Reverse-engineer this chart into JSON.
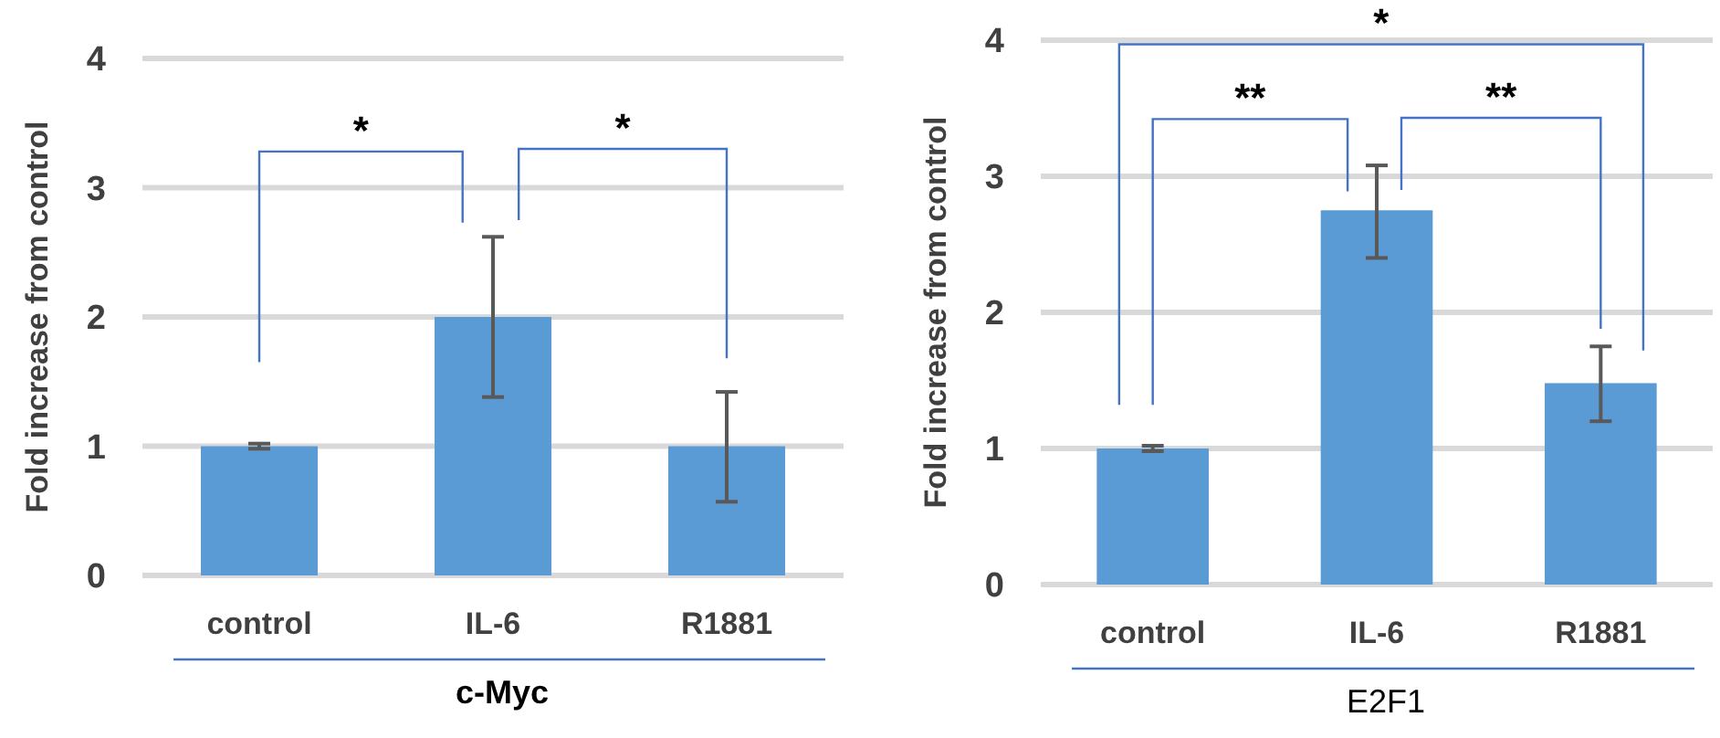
{
  "chart_data": [
    {
      "type": "bar",
      "xlabel": "c-Myc",
      "ylabel": "Fold increase from control",
      "categories": [
        "control",
        "IL-6",
        "R1881"
      ],
      "values": [
        1,
        2,
        1
      ],
      "errors": [
        0.02,
        [
          1.38,
          2.62
        ],
        [
          0.57,
          1.42
        ]
      ],
      "color": "#5b9bd5",
      "ylim": [
        0,
        4
      ],
      "yticks": [
        0,
        1,
        2,
        3,
        4
      ],
      "grid": "y",
      "annotations": [
        "*",
        "*"
      ]
    },
    {
      "type": "bar",
      "xlabel": "E2F1",
      "ylabel": "Fold increase from control",
      "categories": [
        "control",
        "IL-6",
        "R1881"
      ],
      "values": [
        1,
        2.75,
        1.48
      ],
      "errors": [
        0.02,
        [
          2.4,
          3.08
        ],
        [
          1.2,
          1.75
        ]
      ],
      "color": "#5b9bd5",
      "ylim": [
        0,
        4
      ],
      "yticks": [
        0,
        1,
        2,
        3,
        4
      ],
      "grid": "y",
      "annotations": [
        "**",
        "**",
        "*"
      ]
    }
  ]
}
